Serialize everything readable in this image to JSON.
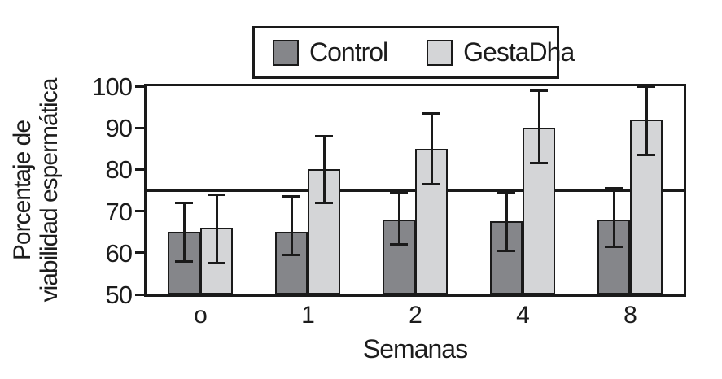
{
  "chart_data": {
    "type": "bar",
    "title": "",
    "categories": [
      "o",
      "1",
      "2",
      "4",
      "8"
    ],
    "xlabel": "Semanas",
    "ylabel": "Porcentaje de viabilidad espermática",
    "ylabel_lines": [
      "Porcentaje de",
      "viabilidad espermática"
    ],
    "ylim": [
      50,
      100
    ],
    "yticks": [
      50,
      60,
      70,
      80,
      90,
      100
    ],
    "reference_line_y": 75,
    "grid": false,
    "legend_position": "top-center",
    "axis_color": "#1a1a1a",
    "bar_outline_color": "#1a1a1a",
    "series": [
      {
        "name": "Control",
        "color": "#85868a",
        "values": [
          65,
          65,
          68,
          67.5,
          68
        ],
        "error_low": [
          58,
          59.5,
          62,
          60.5,
          61.5
        ],
        "error_high": [
          72,
          73.5,
          74.5,
          74.5,
          75.5
        ]
      },
      {
        "name": "GestaDha",
        "color": "#d4d5d7",
        "values": [
          66,
          80,
          85,
          90,
          92
        ],
        "error_low": [
          57.5,
          72,
          76.5,
          81.5,
          83.5
        ],
        "error_high": [
          74,
          88,
          93.5,
          99,
          100
        ]
      }
    ]
  }
}
